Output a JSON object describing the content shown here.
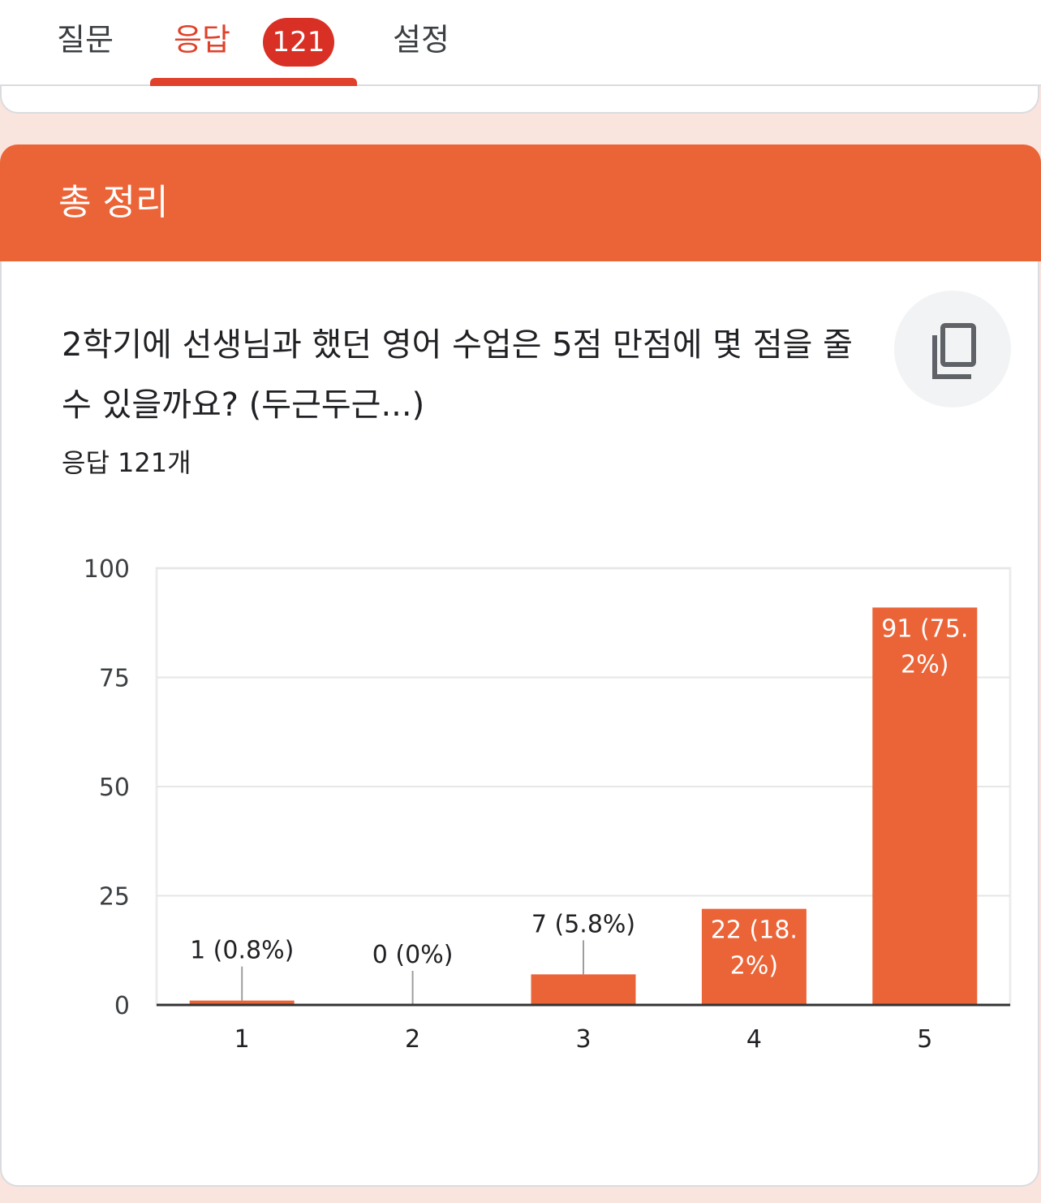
{
  "tabs": {
    "questions": "질문",
    "responses": "응답",
    "response_badge": "121",
    "settings": "설정"
  },
  "section": {
    "title": "총 정리"
  },
  "question": {
    "text": "2학기에 선생님과 했던 영어 수업은 5점 만점에 몇 점을 줄 수 있을까요? (두근두근...)",
    "response_count": "응답 121개",
    "copy_icon": "copy-icon"
  },
  "colors": {
    "accent": "#eb6438",
    "tab_active": "#e0412a",
    "badge": "#d93025",
    "background": "#fae4de"
  },
  "chart_data": {
    "type": "bar",
    "categories": [
      "1",
      "2",
      "3",
      "4",
      "5"
    ],
    "values": [
      1,
      0,
      7,
      22,
      91
    ],
    "labels": [
      "1 (0.8%)",
      "0 (0%)",
      "7 (5.8%)",
      "22 (18.2%)",
      "91 (75.2%)"
    ],
    "label_lines": [
      [
        "1 (0.8%)"
      ],
      [
        "0 (0%)"
      ],
      [
        "7 (5.8%)"
      ],
      [
        "22 (18.",
        "2%)"
      ],
      [
        "91 (75.",
        "2%)"
      ]
    ],
    "label_inside": [
      false,
      false,
      false,
      true,
      true
    ],
    "y_ticks": [
      0,
      25,
      50,
      75,
      100
    ],
    "ylim": [
      0,
      100
    ],
    "grid": true,
    "bar_color": "#eb6438"
  }
}
